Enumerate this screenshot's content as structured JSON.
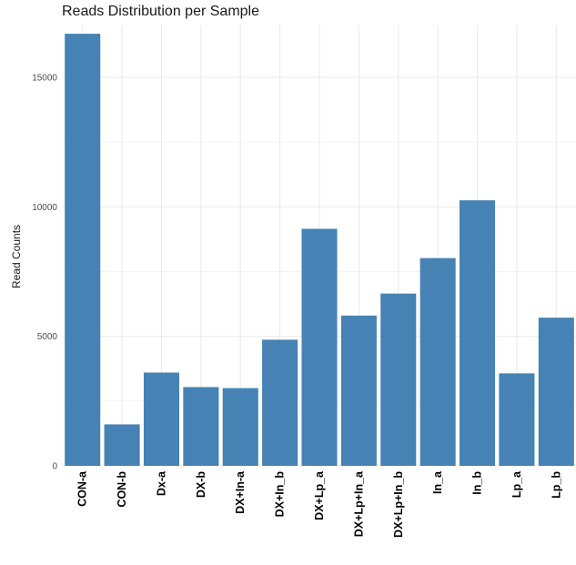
{
  "chart_data": {
    "type": "bar",
    "title": "Reads Distribution per Sample",
    "xlabel": "",
    "ylabel": "Read Counts",
    "categories": [
      "CON-a",
      "CON-b",
      "Dx-a",
      "DX-b",
      "DX+In-a",
      "DX+In_b",
      "DX+Lp_a",
      "DX+Lp+In_a",
      "DX+Lp+In_b",
      "In_a",
      "In_b",
      "Lp_a",
      "Lp_b"
    ],
    "values": [
      16680,
      1600,
      3600,
      3040,
      3000,
      4870,
      9150,
      5800,
      6650,
      8020,
      10250,
      3570,
      5720
    ],
    "ylim": [
      0,
      17000
    ],
    "yticks": [
      0,
      5000,
      10000,
      15000
    ],
    "grid": true,
    "colors": {
      "bar": "#4682B4",
      "grid": "#ebebeb"
    }
  }
}
